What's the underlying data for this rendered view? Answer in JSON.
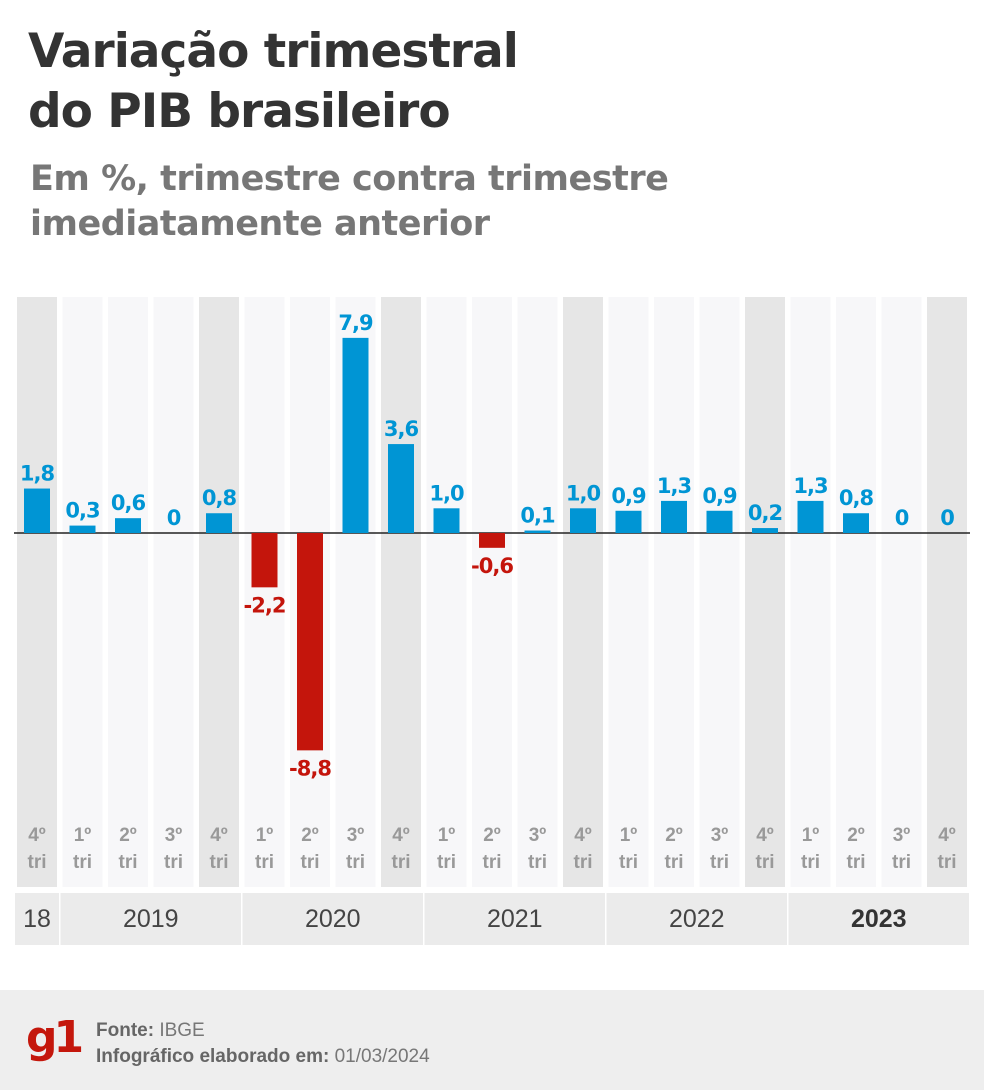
{
  "title": [
    "Variação trimestral",
    "do PIB brasileiro"
  ],
  "subtitle": [
    "Em %, trimestre contra trimestre",
    "imediatamente anterior"
  ],
  "chart_data": {
    "type": "bar",
    "categories": [
      "4º tri",
      "1º tri",
      "2º tri",
      "3º tri",
      "4º tri",
      "1º tri",
      "2º tri",
      "3º tri",
      "4º tri",
      "1º tri",
      "2º tri",
      "3º tri",
      "4º tri",
      "1º tri",
      "2º tri",
      "3º tri",
      "4º tri",
      "1º tri",
      "2º tri",
      "3º tri",
      "4º tri"
    ],
    "values": [
      1.8,
      0.3,
      0.6,
      0,
      0.8,
      -2.2,
      -8.8,
      7.9,
      3.6,
      1.0,
      -0.6,
      0.1,
      1.0,
      0.9,
      1.3,
      0.9,
      0.2,
      1.3,
      0.8,
      0,
      0
    ],
    "data_labels": [
      "1,8",
      "0,3",
      "0,6",
      "0",
      "0,8",
      "-2,2",
      "-8,8",
      "7,9",
      "3,6",
      "1,0",
      "-0,6",
      "0,1",
      "1,0",
      "0,9",
      "1,3",
      "0,9",
      "0,2",
      "1,3",
      "0,8",
      "0",
      "0"
    ],
    "years": [
      {
        "label": "18",
        "span": 1,
        "bold": false
      },
      {
        "label": "2019",
        "span": 4,
        "bold": false
      },
      {
        "label": "2020",
        "span": 4,
        "bold": false
      },
      {
        "label": "2021",
        "span": 4,
        "bold": false
      },
      {
        "label": "2022",
        "span": 4,
        "bold": false
      },
      {
        "label": "2023",
        "span": 4,
        "bold": true
      }
    ],
    "colors": {
      "positive": "#0095d4",
      "negative": "#c4150c"
    },
    "grid": false
  },
  "footer": {
    "logo": "g1",
    "source_label": "Fonte:",
    "source": "IBGE",
    "date_label": "Infográfico elaborado em:",
    "date": "01/03/2024"
  }
}
